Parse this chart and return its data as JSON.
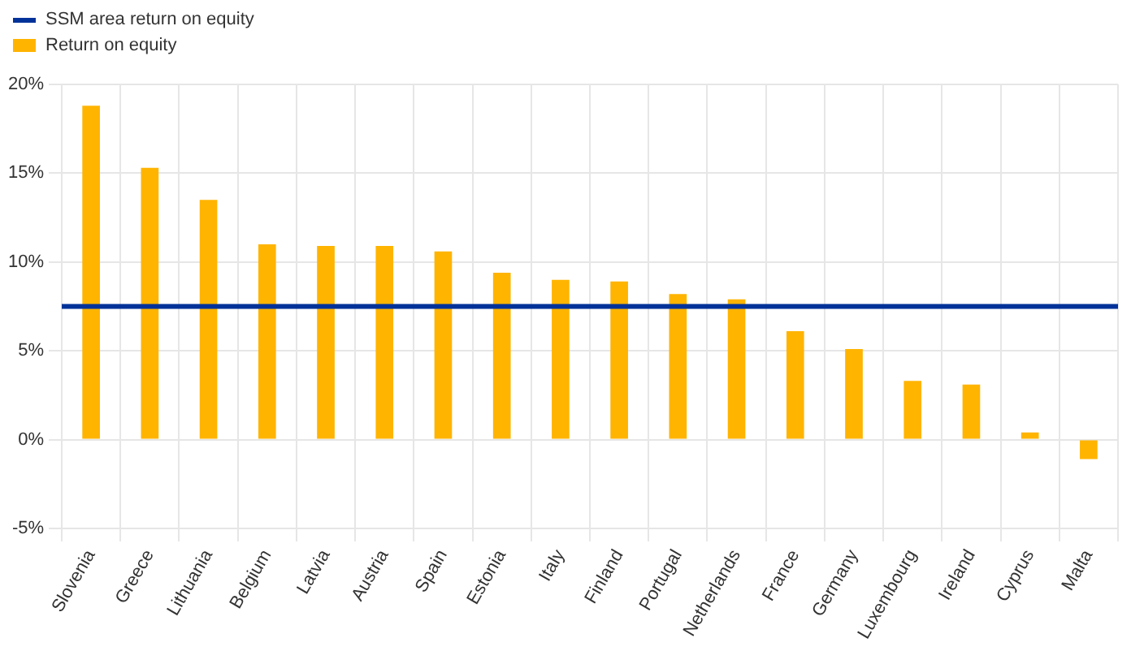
{
  "chart_data": {
    "type": "bar",
    "categories": [
      "Slovenia",
      "Greece",
      "Lithuania",
      "Belgium",
      "Latvia",
      "Austria",
      "Spain",
      "Estonia",
      "Italy",
      "Finland",
      "Portugal",
      "Netherlands",
      "France",
      "Germany",
      "Luxembourg",
      "Ireland",
      "Cyprus",
      "Malta"
    ],
    "series": [
      {
        "name": "Return on equity",
        "color": "#ffb400",
        "values": [
          18.8,
          15.3,
          13.5,
          11.0,
          10.9,
          10.9,
          10.6,
          9.4,
          9.0,
          8.9,
          8.2,
          7.9,
          6.1,
          5.1,
          3.3,
          3.1,
          0.4,
          -1.1
        ]
      }
    ],
    "ref_lines": [
      {
        "axis": "y",
        "value": 7.5,
        "label": "SSM area return on equity",
        "color": "#003299"
      }
    ],
    "ylim": [
      -5,
      20
    ],
    "yticks": [
      {
        "value": -5,
        "label": "-5%"
      },
      {
        "value": 0,
        "label": "0%"
      },
      {
        "value": 5,
        "label": "5%"
      },
      {
        "value": 10,
        "label": "10%"
      },
      {
        "value": 15,
        "label": "15%"
      },
      {
        "value": 20,
        "label": "20%"
      }
    ],
    "grid": true,
    "legend": "top left"
  }
}
